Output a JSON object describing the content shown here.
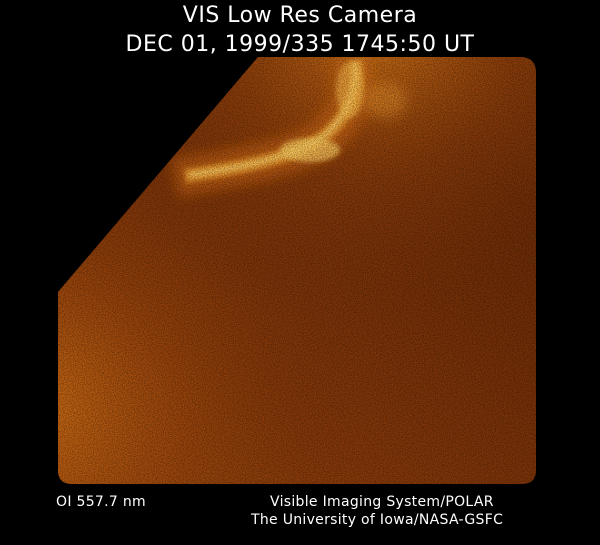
{
  "header": {
    "title_line_1": "VIS Low Res Camera",
    "title_line_2": "DEC 01, 1999/335 1745:50 UT"
  },
  "footer": {
    "filter_label": "OI  557.7 nm",
    "credit_line_1": "Visible Imaging System/POLAR",
    "credit_line_2": "The University of Iowa/NASA-GSFC"
  },
  "image": {
    "subject": "auroral-emission-image",
    "colors": {
      "background": "#000000",
      "dark_glow": "#6a2a07",
      "mid_glow": "#a0480c",
      "bright_glow": "#e07d14",
      "aurora_core": "#ffd36a"
    }
  }
}
